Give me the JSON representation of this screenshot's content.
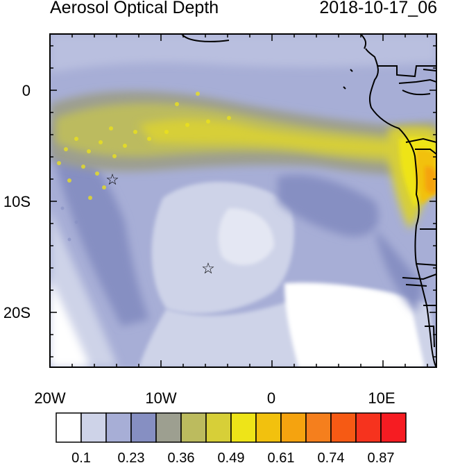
{
  "header": {
    "title": "Aerosol Optical Depth",
    "datetime": "2018-10-17_06"
  },
  "map": {
    "lon_ticks": [
      "20W",
      "10W",
      "0",
      "10E"
    ],
    "lat_ticks": [
      "0",
      "10S",
      "20S"
    ],
    "markers": [
      {
        "name": "star-marker-north",
        "symbol": "☆"
      },
      {
        "name": "star-marker-south",
        "symbol": "☆"
      }
    ]
  },
  "colorbar": {
    "colors": [
      "#ffffff",
      "#ced3e8",
      "#a7aed6",
      "#868fc2",
      "#9d9f90",
      "#bcbb5e",
      "#d7cf38",
      "#eee418",
      "#f2c10e",
      "#f5a30f",
      "#f57f1d",
      "#f65a14",
      "#f6331e",
      "#f61c22"
    ],
    "labels": [
      "0.1",
      "0.23",
      "0.36",
      "0.49",
      "0.61",
      "0.74",
      "0.87"
    ]
  }
}
